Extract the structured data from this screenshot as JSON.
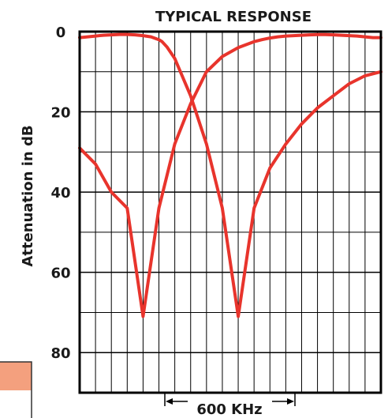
{
  "colors": {
    "curve": "#e8342c",
    "grid": "#000000",
    "swatch_fill": "#f4a07e",
    "swatch_border": "#333333",
    "text": "#1a1a1a"
  },
  "annotation": {
    "bandwidth": "600 KHz"
  },
  "chart_data": {
    "type": "line",
    "title": "TYPICAL RESPONSE",
    "xlabel": "",
    "ylabel": "Attenuation in dB",
    "ylim": [
      0,
      90
    ],
    "y_inverted": true,
    "y_ticks": [
      0,
      20,
      40,
      60,
      80
    ],
    "y_tick_labels": [
      "0",
      "20",
      "40",
      "60",
      "80"
    ],
    "x_ticks_labeled": false,
    "grid": true,
    "legend": "none",
    "series": [
      {
        "x": [
          0,
          0.5,
          1,
          1.5,
          2,
          2.5,
          3,
          3.5,
          4,
          4.5,
          5,
          5.2,
          5.5,
          6,
          7,
          8,
          9,
          10,
          11,
          12,
          13,
          14,
          15,
          16,
          17,
          18,
          19
        ],
        "y": [
          1.5,
          1.3,
          1.1,
          0.9,
          0.8,
          0.7,
          0.7,
          0.8,
          1.0,
          1.3,
          2.0,
          2.5,
          3.8,
          6.7,
          16,
          28,
          44,
          71,
          44,
          34,
          28,
          23,
          19,
          16,
          13,
          11,
          10
        ]
      },
      {
        "x": [
          0,
          1,
          2,
          3,
          4,
          5,
          6,
          7,
          8,
          9,
          10,
          11,
          11.5,
          12,
          12.5,
          13,
          13.5,
          14,
          14.5,
          15,
          15.5,
          16,
          16.5,
          17,
          17.5,
          18,
          18.5,
          19
        ],
        "y": [
          29,
          33,
          40,
          44,
          71,
          44,
          28,
          18,
          10,
          6.2,
          4.0,
          2.5,
          2.0,
          1.6,
          1.3,
          1.1,
          1.0,
          0.9,
          0.8,
          0.75,
          0.75,
          0.8,
          0.9,
          1.0,
          1.1,
          1.3,
          1.5,
          1.5
        ]
      }
    ]
  }
}
